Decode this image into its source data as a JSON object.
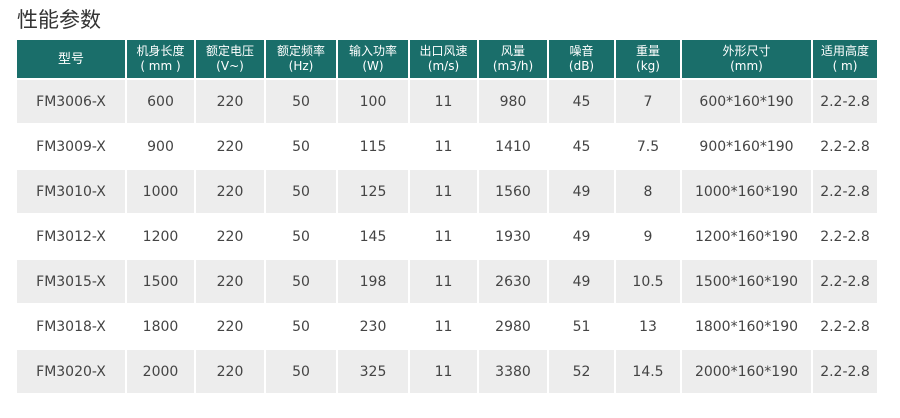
{
  "title": "性能参数",
  "colors": {
    "header": "#1a6e6a",
    "stripe": "#ededed"
  },
  "headers": [
    [
      "型号",
      ""
    ],
    [
      "机身长度",
      "( mm )"
    ],
    [
      "额定电压",
      "(V~)"
    ],
    [
      "额定频率",
      "(Hz)"
    ],
    [
      "输入功率",
      "(W)"
    ],
    [
      "出口风速",
      "(m/s)"
    ],
    [
      "风量",
      "(m3/h)"
    ],
    [
      "噪音",
      "(dB)"
    ],
    [
      "重量",
      "(kg)"
    ],
    [
      "外形尺寸",
      "(mm)"
    ],
    [
      "适用高度",
      "( m)"
    ]
  ],
  "rows": [
    [
      "FM3006-X",
      "600",
      "220",
      "50",
      "100",
      "11",
      "980",
      "45",
      "7",
      "600*160*190",
      "2.2-2.8"
    ],
    [
      "FM3009-X",
      "900",
      "220",
      "50",
      "115",
      "11",
      "1410",
      "45",
      "7.5",
      "900*160*190",
      "2.2-2.8"
    ],
    [
      "FM3010-X",
      "1000",
      "220",
      "50",
      "125",
      "11",
      "1560",
      "49",
      "8",
      "1000*160*190",
      "2.2-2.8"
    ],
    [
      "FM3012-X",
      "1200",
      "220",
      "50",
      "145",
      "11",
      "1930",
      "49",
      "9",
      "1200*160*190",
      "2.2-2.8"
    ],
    [
      "FM3015-X",
      "1500",
      "220",
      "50",
      "198",
      "11",
      "2630",
      "49",
      "10.5",
      "1500*160*190",
      "2.2-2.8"
    ],
    [
      "FM3018-X",
      "1800",
      "220",
      "50",
      "230",
      "11",
      "2980",
      "51",
      "13",
      "1800*160*190",
      "2.2-2.8"
    ],
    [
      "FM3020-X",
      "2000",
      "220",
      "50",
      "325",
      "11",
      "3380",
      "52",
      "14.5",
      "2000*160*190",
      "2.2-2.8"
    ]
  ]
}
